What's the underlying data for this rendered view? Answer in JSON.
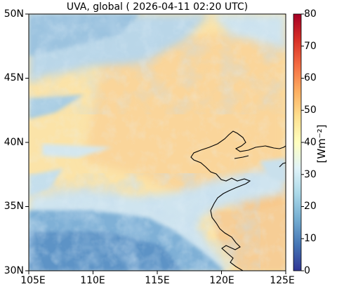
{
  "title": "UVA, global ( 2026-04-11 02:20 UTC)",
  "lat_labels": [
    "50N",
    "45N",
    "40N",
    "35N",
    "30N"
  ],
  "lon_labels": [
    "105E",
    "110E",
    "115E",
    "120E",
    "125E"
  ],
  "extent": {
    "lon_min": 105,
    "lon_max": 125,
    "lat_min": 30,
    "lat_max": 50
  },
  "colorbar": {
    "unit_label": "[Wm⁻²]",
    "ticks": [
      "80",
      "70",
      "60",
      "50",
      "40",
      "30",
      "20",
      "10",
      "0"
    ],
    "range": [
      0,
      80
    ],
    "colormap": "RdYlBu_r",
    "colors": [
      "#313695",
      "#4575b4",
      "#74add1",
      "#abd9e9",
      "#e0f3f8",
      "#ffffbf",
      "#fee090",
      "#fdae61",
      "#f46d43",
      "#d73027",
      "#a50026"
    ]
  },
  "field_colors": {
    "high_plateau": "#fcd79a",
    "main": "#fbe7b2",
    "cloud_blue": "#8db8db",
    "cloud_light": "#c8e2ef",
    "east_orange": "#f8c98b"
  }
}
